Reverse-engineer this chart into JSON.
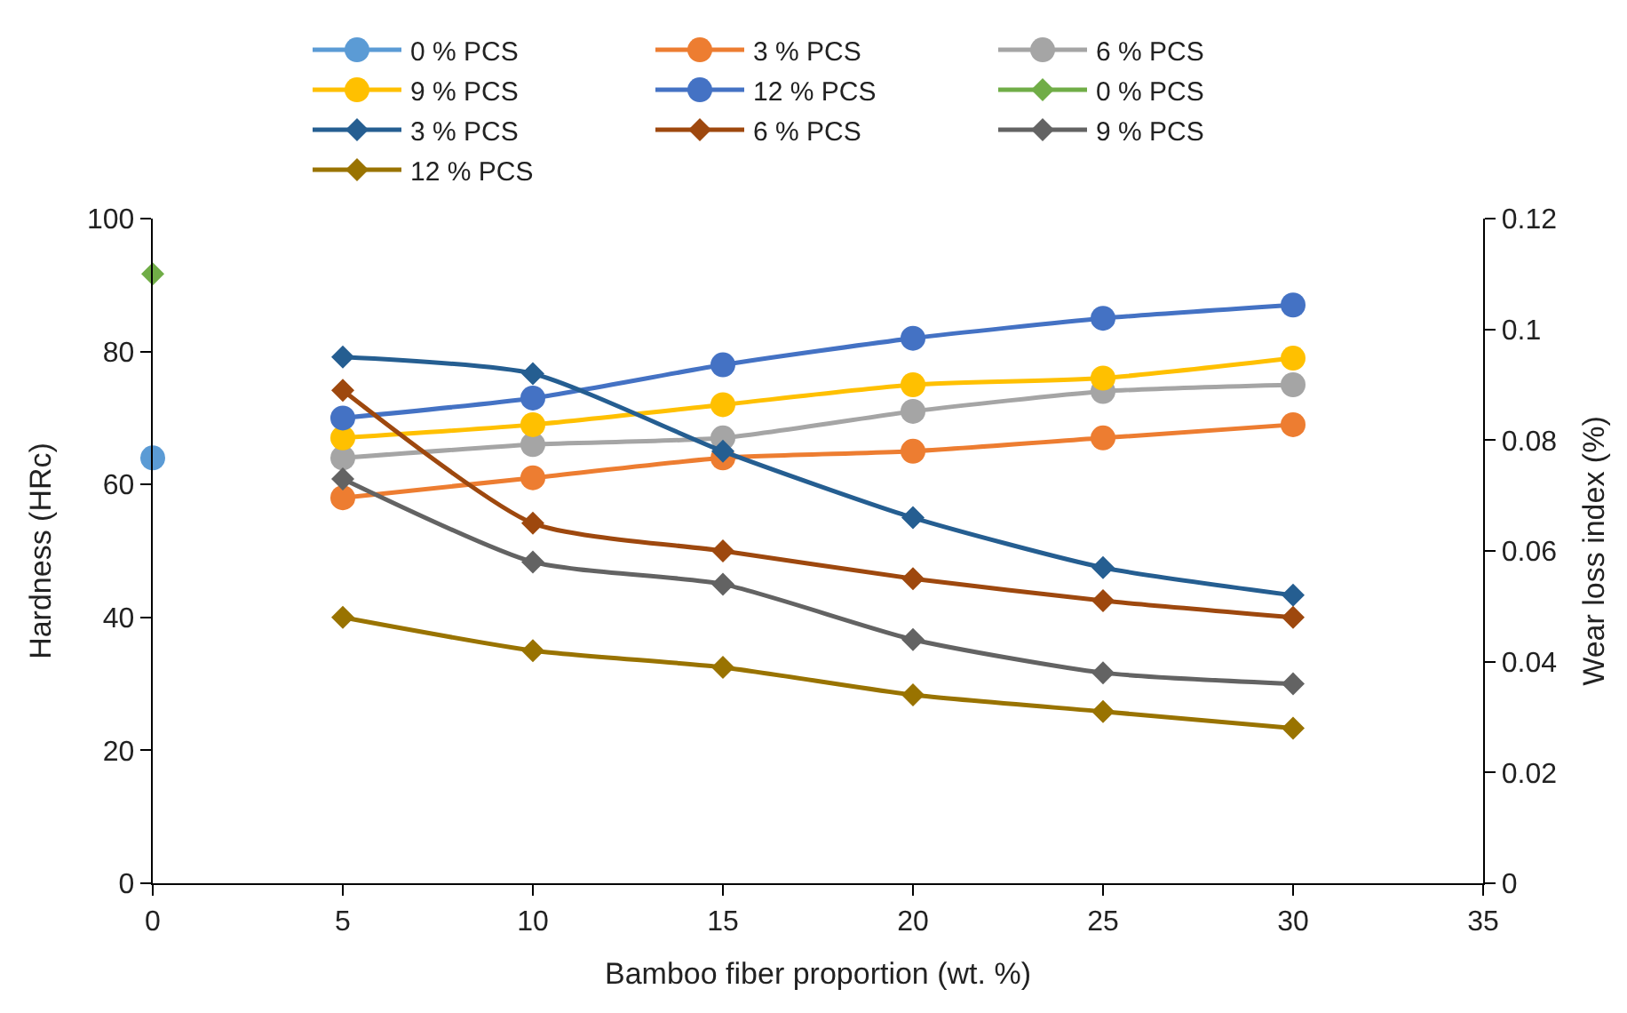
{
  "chart_data": {
    "type": "line",
    "xlabel": "Bamboo fiber proportion (wt. %)",
    "ylabel": "Hardness (HRc)",
    "y2label": "Wear loss index (%)",
    "xlim": [
      0,
      35
    ],
    "xticks": [
      0,
      5,
      10,
      15,
      20,
      25,
      30,
      35
    ],
    "ylim": [
      0,
      100
    ],
    "yticks": [
      0,
      20,
      40,
      60,
      80,
      100
    ],
    "y2lim": [
      0,
      0.12
    ],
    "y2ticks": [
      0,
      0.02,
      0.04,
      0.06,
      0.08,
      0.1,
      0.12
    ],
    "legend": "top",
    "series": [
      {
        "name": "0 % PCS",
        "color": "#5b9bd5",
        "marker": "circle",
        "x": [
          0
        ],
        "values": [
          64
        ]
      },
      {
        "name": "3 % PCS",
        "color": "#ed7d31",
        "marker": "circle",
        "x": [
          5,
          10,
          15,
          20,
          25,
          30
        ],
        "values": [
          58,
          61,
          64,
          65,
          67,
          69
        ]
      },
      {
        "name": "6 % PCS",
        "color": "#a5a5a5",
        "marker": "circle",
        "x": [
          5,
          10,
          15,
          20,
          25,
          30
        ],
        "values": [
          64,
          66,
          67,
          71,
          74,
          75
        ]
      },
      {
        "name": "9 % PCS",
        "color": "#ffc000",
        "marker": "circle",
        "x": [
          5,
          10,
          15,
          20,
          25,
          30
        ],
        "values": [
          67,
          69,
          72,
          75,
          76,
          79
        ]
      },
      {
        "name": "12 % PCS",
        "color": "#4472c4",
        "marker": "circle",
        "x": [
          5,
          10,
          15,
          20,
          25,
          30
        ],
        "values": [
          70,
          73,
          78,
          82,
          85,
          87
        ]
      },
      {
        "name": "0 % PCS",
        "color": "#70ad47",
        "marker": "diamond",
        "axis": "y2",
        "x": [
          0
        ],
        "values": [
          0.11
        ]
      },
      {
        "name": "3 % PCS",
        "color": "#255e91",
        "marker": "diamond",
        "axis": "y2",
        "x": [
          5,
          10,
          15,
          20,
          25,
          30
        ],
        "values": [
          0.095,
          0.092,
          0.078,
          0.066,
          0.057,
          0.052
        ]
      },
      {
        "name": "6 % PCS",
        "color": "#9e480e",
        "marker": "diamond",
        "axis": "y2",
        "x": [
          5,
          10,
          15,
          20,
          25,
          30
        ],
        "values": [
          0.089,
          0.065,
          0.06,
          0.055,
          0.051,
          0.048
        ]
      },
      {
        "name": "9 % PCS",
        "color": "#636363",
        "marker": "diamond",
        "axis": "y2",
        "x": [
          5,
          10,
          15,
          20,
          25,
          30
        ],
        "values": [
          0.073,
          0.058,
          0.054,
          0.044,
          0.038,
          0.036
        ]
      },
      {
        "name": "12 % PCS",
        "color": "#997300",
        "marker": "diamond",
        "axis": "y2",
        "x": [
          5,
          10,
          15,
          20,
          25,
          30
        ],
        "values": [
          0.048,
          0.042,
          0.039,
          0.034,
          0.031,
          0.028
        ]
      }
    ]
  }
}
